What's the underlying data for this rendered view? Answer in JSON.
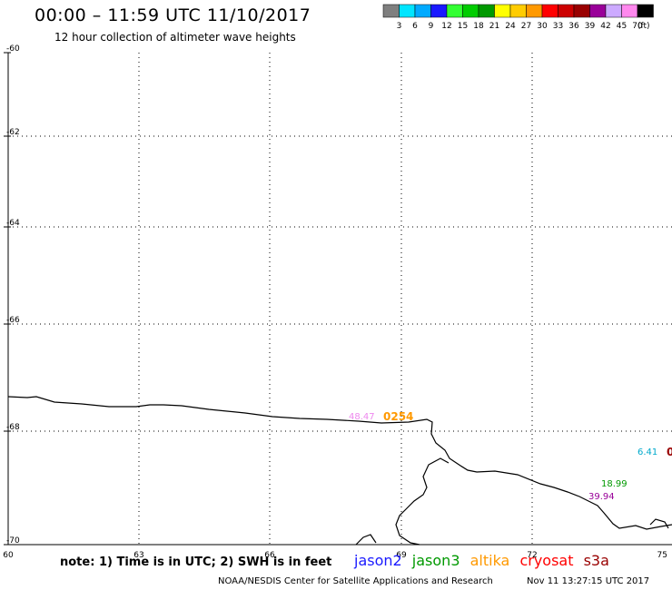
{
  "header": {
    "title": "00:00 – 11:59 UTC 11/10/2017",
    "subtitle": "12 hour collection of altimeter wave heights"
  },
  "legend": {
    "unit": "(ft)",
    "bins": [
      {
        "label": "3",
        "color": "#7f7f7f"
      },
      {
        "label": "6",
        "color": "#00e5ff"
      },
      {
        "label": "9",
        "color": "#00aaff"
      },
      {
        "label": "12",
        "color": "#1a1aff"
      },
      {
        "label": "15",
        "color": "#33ff33"
      },
      {
        "label": "18",
        "color": "#00cc00"
      },
      {
        "label": "21",
        "color": "#009900"
      },
      {
        "label": "24",
        "color": "#ffff00"
      },
      {
        "label": "27",
        "color": "#ffcc00"
      },
      {
        "label": "30",
        "color": "#ff9900"
      },
      {
        "label": "33",
        "color": "#ff0000"
      },
      {
        "label": "36",
        "color": "#cc0000"
      },
      {
        "label": "39",
        "color": "#990000"
      },
      {
        "label": "42",
        "color": "#990099"
      },
      {
        "label": "45",
        "color": "#ccaaff"
      },
      {
        "label": "70",
        "color": "#ff88ee"
      },
      {
        "label": "",
        "color": "#000000"
      }
    ]
  },
  "map": {
    "lat_labels": [
      "-60",
      "-62",
      "-64",
      "-66",
      "-68",
      "-70"
    ],
    "lon_labels": [
      "60",
      "63",
      "66",
      "69",
      "72",
      "75"
    ],
    "observations": [
      {
        "text": "48.47",
        "color": "#ee88ee"
      },
      {
        "text": "0254",
        "color": "#ff9900"
      },
      {
        "text": "6.41",
        "color": "#00aacc"
      },
      {
        "text": "0",
        "color": "#990000"
      },
      {
        "text": "18.99",
        "color": "#009900"
      },
      {
        "text": "39.94",
        "color": "#990099"
      }
    ]
  },
  "note": "note: 1) Time is in UTC; 2) SWH is in feet",
  "satellites": [
    {
      "name": "jason2",
      "color": "#1a1aff"
    },
    {
      "name": "jason3",
      "color": "#009900"
    },
    {
      "name": "altika",
      "color": "#ff9900"
    },
    {
      "name": "cryosat",
      "color": "#ff0000"
    },
    {
      "name": "s3a",
      "color": "#990000"
    }
  ],
  "footer": {
    "credit": "NOAA/NESDIS Center for Satellite Applications and Research",
    "timestamp": "Nov 11 13:27:15 UTC 2017"
  }
}
